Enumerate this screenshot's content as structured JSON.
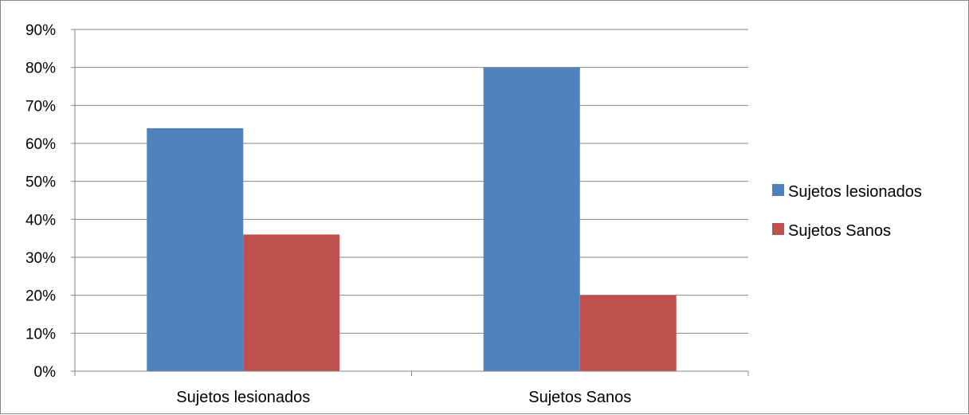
{
  "chart_data": {
    "type": "bar",
    "categories": [
      "Sujetos lesionados",
      "Sujetos Sanos"
    ],
    "series": [
      {
        "name": "Sujetos lesionados",
        "values": [
          64,
          80
        ],
        "color": "#4F81BD"
      },
      {
        "name": "Sujetos Sanos",
        "values": [
          36,
          20
        ],
        "color": "#C0504D"
      }
    ],
    "ylim": [
      0,
      90
    ],
    "y_ticks": [
      "0%",
      "10%",
      "20%",
      "30%",
      "40%",
      "50%",
      "60%",
      "70%",
      "80%",
      "90%"
    ],
    "y_unit": "%",
    "grid": true,
    "legend_position": "right"
  }
}
